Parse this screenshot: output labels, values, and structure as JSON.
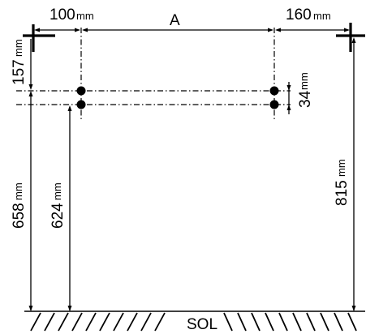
{
  "diagram": {
    "left_offset": {
      "value": "100",
      "unit": "mm"
    },
    "center_span": {
      "label": "A"
    },
    "right_offset": {
      "value": "160",
      "unit": "mm"
    },
    "top_drop": {
      "value": "157",
      "unit": "mm"
    },
    "spacing": {
      "value": "34",
      "unit": "mm"
    },
    "left_height": {
      "value": "658",
      "unit": "mm"
    },
    "inner_height": {
      "value": "624",
      "unit": "mm"
    },
    "right_height": {
      "value": "815",
      "unit": "mm"
    },
    "floor_label": "SOL"
  }
}
